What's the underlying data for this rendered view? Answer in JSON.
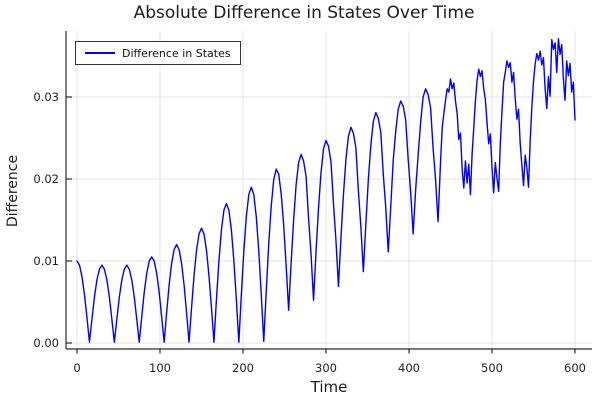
{
  "figure": {
    "title": "Absolute Difference in States Over Time",
    "xlabel": "Time",
    "ylabel": "Difference"
  },
  "legend": {
    "items": [
      {
        "label": "Difference in States",
        "color": "#0000ff"
      }
    ]
  },
  "colors": {
    "line": "#0000ff",
    "grid": "#e4e4e4",
    "axis": "#2b2b2b",
    "text": "#1e1e1e",
    "background": "#ffffff"
  },
  "chart_data": {
    "type": "line",
    "title": "Absolute Difference in States Over Time",
    "xlabel": "Time",
    "ylabel": "Difference",
    "xlim": [
      -13,
      620
    ],
    "ylim": [
      -0.0007,
      0.038
    ],
    "grid": true,
    "legend_position": "top-left",
    "xticks": [
      0,
      100,
      200,
      300,
      400,
      500,
      600
    ],
    "xtick_labels": [
      "0",
      "100",
      "200",
      "300",
      "400",
      "500",
      "600"
    ],
    "yticks": [
      0,
      0.01,
      0.02,
      0.03
    ],
    "ytick_labels": [
      "0.00",
      "0.01",
      "0.02",
      "0.03"
    ],
    "series": [
      {
        "name": "Difference in States",
        "color": "#0000ff",
        "points": [
          [
            0,
            0.01
          ],
          [
            3,
            0.0095
          ],
          [
            6,
            0.0081
          ],
          [
            9,
            0.0059
          ],
          [
            12,
            0.0031
          ],
          [
            15,
            0.0001
          ],
          [
            18,
            0.0029
          ],
          [
            21,
            0.0056
          ],
          [
            24,
            0.0077
          ],
          [
            27,
            0.009
          ],
          [
            30,
            0.0095
          ],
          [
            33,
            0.009
          ],
          [
            36,
            0.0077
          ],
          [
            39,
            0.0056
          ],
          [
            42,
            0.0029
          ],
          [
            45,
            0.0001
          ],
          [
            48,
            0.0029
          ],
          [
            51,
            0.0056
          ],
          [
            54,
            0.0077
          ],
          [
            57,
            0.009
          ],
          [
            60,
            0.0095
          ],
          [
            63,
            0.009
          ],
          [
            66,
            0.0077
          ],
          [
            69,
            0.0056
          ],
          [
            72,
            0.0029
          ],
          [
            75,
            0.0001
          ],
          [
            78,
            0.0032
          ],
          [
            81,
            0.0062
          ],
          [
            84,
            0.0085
          ],
          [
            87,
            0.01
          ],
          [
            90,
            0.0105
          ],
          [
            93,
            0.01
          ],
          [
            96,
            0.0085
          ],
          [
            99,
            0.0062
          ],
          [
            102,
            0.0032
          ],
          [
            105,
            0.0001
          ],
          [
            108,
            0.0037
          ],
          [
            111,
            0.0071
          ],
          [
            114,
            0.0097
          ],
          [
            117,
            0.0114
          ],
          [
            120,
            0.012
          ],
          [
            123,
            0.0114
          ],
          [
            126,
            0.0097
          ],
          [
            129,
            0.0071
          ],
          [
            132,
            0.0037
          ],
          [
            135,
            0.0001
          ],
          [
            138,
            0.0043
          ],
          [
            141,
            0.0082
          ],
          [
            144,
            0.0113
          ],
          [
            147,
            0.0133
          ],
          [
            150,
            0.014
          ],
          [
            153,
            0.0133
          ],
          [
            156,
            0.0113
          ],
          [
            159,
            0.0082
          ],
          [
            162,
            0.0043
          ],
          [
            165,
            0.0001
          ],
          [
            168,
            0.0053
          ],
          [
            171,
            0.01
          ],
          [
            174,
            0.0138
          ],
          [
            177,
            0.0162
          ],
          [
            180,
            0.017
          ],
          [
            183,
            0.0162
          ],
          [
            186,
            0.0138
          ],
          [
            189,
            0.01
          ],
          [
            192,
            0.0053
          ],
          [
            195,
            0.0001
          ],
          [
            198,
            0.0059
          ],
          [
            201,
            0.0112
          ],
          [
            204,
            0.0154
          ],
          [
            207,
            0.0181
          ],
          [
            210,
            0.019
          ],
          [
            213,
            0.0181
          ],
          [
            216,
            0.0154
          ],
          [
            219,
            0.0112
          ],
          [
            222,
            0.0059
          ],
          [
            225,
            0.0002
          ],
          [
            228,
            0.0063
          ],
          [
            231,
            0.0121
          ],
          [
            234,
            0.0167
          ],
          [
            237,
            0.0199
          ],
          [
            240,
            0.0212
          ],
          [
            243,
            0.0206
          ],
          [
            246,
            0.0182
          ],
          [
            249,
            0.0144
          ],
          [
            252,
            0.0094
          ],
          [
            255,
            0.004
          ],
          [
            258,
            0.0098
          ],
          [
            261,
            0.015
          ],
          [
            264,
            0.0193
          ],
          [
            267,
            0.022
          ],
          [
            270,
            0.023
          ],
          [
            273,
            0.0222
          ],
          [
            276,
            0.0203
          ],
          [
            279,
            0.0152
          ],
          [
            282,
            0.0108
          ],
          [
            285,
            0.0052
          ],
          [
            288,
            0.0112
          ],
          [
            291,
            0.0165
          ],
          [
            294,
            0.0208
          ],
          [
            297,
            0.0237
          ],
          [
            300,
            0.0247
          ],
          [
            303,
            0.024
          ],
          [
            306,
            0.0221
          ],
          [
            309,
            0.017
          ],
          [
            312,
            0.0125
          ],
          [
            315,
            0.0069
          ],
          [
            318,
            0.0128
          ],
          [
            321,
            0.0181
          ],
          [
            324,
            0.0224
          ],
          [
            327,
            0.0252
          ],
          [
            330,
            0.0263
          ],
          [
            333,
            0.0256
          ],
          [
            336,
            0.0238
          ],
          [
            339,
            0.0186
          ],
          [
            342,
            0.0142
          ],
          [
            345,
            0.0087
          ],
          [
            348,
            0.0145
          ],
          [
            351,
            0.0199
          ],
          [
            354,
            0.0241
          ],
          [
            357,
            0.027
          ],
          [
            360,
            0.0281
          ],
          [
            363,
            0.0274
          ],
          [
            366,
            0.0257
          ],
          [
            369,
            0.0206
          ],
          [
            372,
            0.0165
          ],
          [
            375,
            0.0111
          ],
          [
            378,
            0.0166
          ],
          [
            381,
            0.0223
          ],
          [
            384,
            0.0258
          ],
          [
            387,
            0.0285
          ],
          [
            390,
            0.0295
          ],
          [
            393,
            0.0289
          ],
          [
            396,
            0.0272
          ],
          [
            399,
            0.0224
          ],
          [
            402,
            0.0184
          ],
          [
            405,
            0.0133
          ],
          [
            408,
            0.0187
          ],
          [
            411,
            0.0229
          ],
          [
            414,
            0.0269
          ],
          [
            417,
            0.03
          ],
          [
            420,
            0.031
          ],
          [
            423,
            0.0303
          ],
          [
            426,
            0.0287
          ],
          [
            429,
            0.0238
          ],
          [
            432,
            0.0199
          ],
          [
            435,
            0.0148
          ],
          [
            438,
            0.0221
          ],
          [
            440,
            0.0262
          ],
          [
            442,
            0.028
          ],
          [
            444,
            0.0296
          ],
          [
            446,
            0.031
          ],
          [
            448,
            0.0306
          ],
          [
            450,
            0.0322
          ],
          [
            452,
            0.031
          ],
          [
            454,
            0.0317
          ],
          [
            456,
            0.0295
          ],
          [
            458,
            0.028
          ],
          [
            460,
            0.0248
          ],
          [
            462,
            0.0256
          ],
          [
            464,
            0.0213
          ],
          [
            466,
            0.0189
          ],
          [
            468,
            0.0222
          ],
          [
            470,
            0.0195
          ],
          [
            472,
            0.0218
          ],
          [
            474,
            0.0181
          ],
          [
            476,
            0.023
          ],
          [
            478,
            0.0262
          ],
          [
            480,
            0.0295
          ],
          [
            482,
            0.032
          ],
          [
            484,
            0.0334
          ],
          [
            486,
            0.0325
          ],
          [
            488,
            0.0332
          ],
          [
            490,
            0.031
          ],
          [
            492,
            0.0297
          ],
          [
            494,
            0.0269
          ],
          [
            496,
            0.0243
          ],
          [
            498,
            0.0255
          ],
          [
            500,
            0.0214
          ],
          [
            502,
            0.0183
          ],
          [
            504,
            0.022
          ],
          [
            506,
            0.0201
          ],
          [
            508,
            0.0185
          ],
          [
            510,
            0.0243
          ],
          [
            512,
            0.0282
          ],
          [
            514,
            0.0318
          ],
          [
            516,
            0.033
          ],
          [
            518,
            0.0344
          ],
          [
            520,
            0.0336
          ],
          [
            522,
            0.0342
          ],
          [
            524,
            0.0318
          ],
          [
            526,
            0.033
          ],
          [
            528,
            0.0298
          ],
          [
            530,
            0.0273
          ],
          [
            532,
            0.0285
          ],
          [
            534,
            0.0243
          ],
          [
            536,
            0.0217
          ],
          [
            538,
            0.0192
          ],
          [
            540,
            0.0229
          ],
          [
            542,
            0.0214
          ],
          [
            544,
            0.019
          ],
          [
            546,
            0.0247
          ],
          [
            548,
            0.0288
          ],
          [
            550,
            0.0319
          ],
          [
            552,
            0.034
          ],
          [
            554,
            0.0353
          ],
          [
            556,
            0.0345
          ],
          [
            558,
            0.0356
          ],
          [
            560,
            0.0339
          ],
          [
            562,
            0.0348
          ],
          [
            564,
            0.031
          ],
          [
            566,
            0.0286
          ],
          [
            568,
            0.0325
          ],
          [
            570,
            0.0301
          ],
          [
            572,
            0.037
          ],
          [
            574,
            0.0358
          ],
          [
            576,
            0.0366
          ],
          [
            578,
            0.033
          ],
          [
            580,
            0.0371
          ],
          [
            582,
            0.0352
          ],
          [
            584,
            0.0364
          ],
          [
            586,
            0.0322
          ],
          [
            588,
            0.0296
          ],
          [
            590,
            0.0344
          ],
          [
            592,
            0.0326
          ],
          [
            594,
            0.0341
          ],
          [
            596,
            0.0306
          ],
          [
            598,
            0.0318
          ],
          [
            600,
            0.0272
          ]
        ]
      }
    ]
  }
}
